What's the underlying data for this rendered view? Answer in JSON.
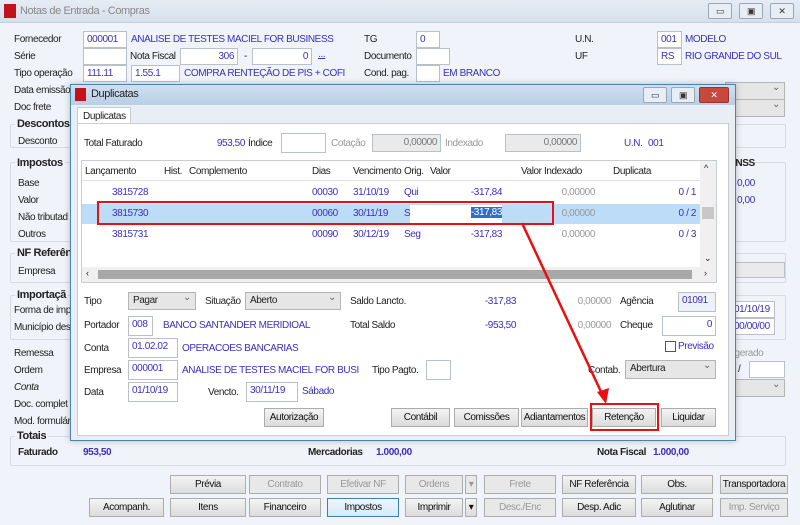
{
  "window": {
    "title": "Notas de Entrada - Compras"
  },
  "header": {
    "fornecedor_label": "Fornecedor",
    "fornecedor_code": "000001",
    "fornecedor_name": "ANALISE DE TESTES MACIEL FOR BUSINESS",
    "tg_label": "TG",
    "tg_value": "0",
    "un_label": "U.N.",
    "un_code": "001",
    "un_name": "MODELO",
    "serie_label": "Série",
    "serie_value": "",
    "nota_fiscal_label": "Nota Fiscal",
    "nota_fiscal_value": "306",
    "dash": "-",
    "nota_fiscal_suffix": "0",
    "ellipsis": "...",
    "documento_label": "Documento",
    "uf_label": "UF",
    "uf_code": "RS",
    "uf_name": "RIO GRANDE DO SUL",
    "tipo_operacao_label": "Tipo operação",
    "tipo_operacao_code": "111.11",
    "cfop": "1.55.1",
    "tipo_operacao_desc": "COMPRA RENTEÇÃO DE PIS + COFI",
    "cond_pag_label": "Cond. pag.",
    "cond_pag_desc": "EM BRANCO",
    "data_emissao_label": "Data emissão",
    "doc_frete_label": "Doc frete"
  },
  "left": {
    "descontos_title": "Descontos,",
    "desconto_label": "Desconto",
    "impostos_title": "Impostos",
    "base_label": "Base",
    "valor_label": "Valor",
    "nao_tributado_label": "Não tributad",
    "outros_label": "Outros",
    "nf_ref_title": "NF Referên",
    "empresa_label": "Empresa",
    "importacao_title": "Importaçã",
    "forma_label": "Forma de imp",
    "municipio_label": "Município des",
    "remessa_label": "Remessa",
    "ordem_label": "Ordem",
    "conta_label": "Conta",
    "doc_completo_label": "Doc. complet",
    "mod_form_label": "Mod. formulár"
  },
  "right": {
    "inss_label": "INSS",
    "inss_base": "0,00",
    "inss_valor": "0,00",
    "date1": "01/10/19",
    "date2": "00/00/00",
    "gerado_label": "o gerado",
    "slash": "/"
  },
  "totais": {
    "title": "Totais",
    "faturado_label": "Faturado",
    "faturado_value": "953,50",
    "mercadorias_label": "Mercadorias",
    "mercadorias_value": "1.000,00",
    "nota_fiscal_label": "Nota Fiscal",
    "nota_fiscal_value": "1.000,00"
  },
  "toolbar": {
    "row1": [
      "Prévia",
      "Contrato",
      "Efetivar NF",
      "Ordens",
      "Frete",
      "NF Referência",
      "Obs.",
      "Transportadora"
    ],
    "row2": [
      "Acompanh.",
      "Itens",
      "Financeiro",
      "Impostos",
      "Imprimir",
      "Desc./Enc",
      "Desp. Adic",
      "Aglutinar",
      "Imp. Serviço"
    ]
  },
  "dialog": {
    "title": "Duplicatas",
    "tab": "Duplicatas",
    "total_faturado_label": "Total Faturado",
    "total_faturado_value": "953,50",
    "indice_label": "Índice",
    "indice_value": "",
    "cotacao_label": "Cotação",
    "cotacao_value": "0,00000",
    "indexado_label": "Indexado",
    "indexado_value": "0,00000",
    "un_label": "U.N.",
    "un_value": "001",
    "columns": [
      "Lançamento",
      "Hist.",
      "Complemento",
      "Dias",
      "Vencimento",
      "Orig.",
      "Valor",
      "Valor Indexado",
      "Duplicata"
    ],
    "rows": [
      {
        "lancamento": "3815728",
        "dias": "00030",
        "vencimento": "31/10/19",
        "orig": "Qui",
        "valor": "-317,84",
        "indexado": "0,00000",
        "duplicata": "0 / 1"
      },
      {
        "lancamento": "3815730",
        "dias": "00060",
        "vencimento": "30/11/19",
        "orig": "Sáb",
        "valor": "-317,83",
        "indexado": "0,00000",
        "duplicata": "0 / 2",
        "selected": true
      },
      {
        "lancamento": "3815731",
        "dias": "00090",
        "vencimento": "30/12/19",
        "orig": "Seg",
        "valor": "-317,83",
        "indexado": "0,00000",
        "duplicata": "0 / 3"
      }
    ],
    "tipo_label": "Tipo",
    "tipo_value": "Pagar",
    "situacao_label": "Situação",
    "situacao_value": "Aberto",
    "saldo_lancto_label": "Saldo Lancto.",
    "saldo_lancto_value": "-317,83",
    "saldo_lancto_idx": "0,00000",
    "agencia_label": "Agência",
    "agencia_value": "01091",
    "portador_label": "Portador",
    "portador_code": "008",
    "portador_name": "BANCO SANTANDER MERIDIOAL",
    "total_saldo_label": "Total Saldo",
    "total_saldo_value": "-953,50",
    "total_saldo_idx": "0,00000",
    "cheque_label": "Cheque",
    "cheque_value": "0",
    "conta_label": "Conta",
    "conta_code": "01.02.02",
    "conta_name": "OPERACOES BANCARIAS",
    "previsao_label": "Previsão",
    "previsao_checked": false,
    "empresa_label": "Empresa",
    "empresa_code": "000001",
    "empresa_name": "ANALISE DE TESTES MACIEL FOR BUSI",
    "tipo_pagto_label": "Tipo Pagto.",
    "contab_label": "Contab.",
    "contab_value": "Abertura",
    "data_label": "Data",
    "data_value": "01/10/19",
    "vencto_label": "Vencto.",
    "vencto_value": "30/11/19",
    "vencto_day": "Sábado",
    "buttons": {
      "autorizacao": "Autorização",
      "contabil": "Contábil",
      "comissoes": "Comissões",
      "adiantamentos": "Adiantamentos",
      "retencao": "Retenção",
      "liquidar": "Liquidar"
    }
  },
  "annotation_color": "#e81010"
}
